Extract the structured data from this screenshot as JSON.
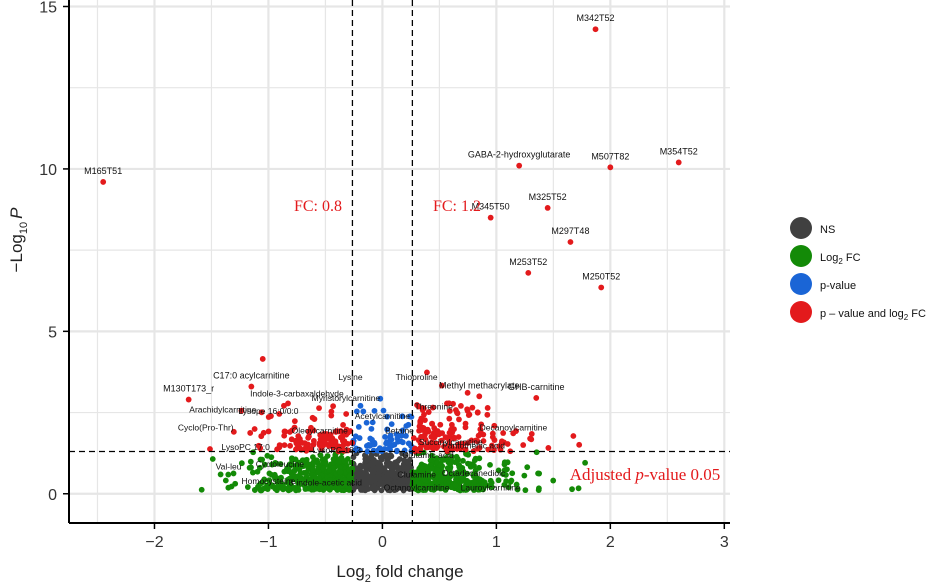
{
  "chart_data": {
    "type": "scatter",
    "xlabel_main": "Log",
    "xlabel_sub": "2",
    "xlabel_rest": " fold change",
    "ylabel_prefix": "−Log",
    "ylabel_sub": "10",
    "ylabel_p": "P",
    "xlim": [
      -2.75,
      3.05
    ],
    "ylim": [
      -0.9,
      15.2
    ],
    "x_ticks": [
      -2,
      -1,
      0,
      1,
      2,
      3
    ],
    "y_ticks": [
      0,
      5,
      10,
      15
    ],
    "fc_thresholds": [
      -0.263,
      0.263
    ],
    "p_threshold": 1.3,
    "annotations": {
      "fc_left": "FC: 0.8",
      "fc_right": "FC: 1.2",
      "adj_prefix": "Adjusted ",
      "adj_p": "p",
      "adj_suffix": "-value 0.05"
    },
    "colors": {
      "NS": "#404040",
      "FC": "#138a07",
      "P": "#1a65d6",
      "BOTH": "#e31a1c",
      "annotation": "#e31a1c"
    },
    "legend": {
      "position": "right",
      "items": [
        {
          "key": "NS",
          "label": "NS"
        },
        {
          "key": "FC",
          "label": "Log",
          "sub": "2",
          "rest": " FC"
        },
        {
          "key": "P",
          "label": "p-value"
        },
        {
          "key": "BOTH",
          "label": "p – value and log",
          "sub": "2",
          "rest": " FC"
        }
      ]
    },
    "labeled_points": [
      {
        "x": 1.87,
        "y": 14.3,
        "label": "M342T52"
      },
      {
        "x": 2.6,
        "y": 10.2,
        "label": "M354T52"
      },
      {
        "x": 2.0,
        "y": 10.05,
        "label": "M507T82"
      },
      {
        "x": 1.2,
        "y": 10.1,
        "label": "GABA-2-hydroxyglutarate"
      },
      {
        "x": -2.45,
        "y": 9.6,
        "label": "M165T51"
      },
      {
        "x": 1.45,
        "y": 8.8,
        "label": "M325T52"
      },
      {
        "x": 0.95,
        "y": 8.5,
        "label": "M345T50"
      },
      {
        "x": 1.65,
        "y": 7.75,
        "label": "M297T48"
      },
      {
        "x": 1.28,
        "y": 6.8,
        "label": "M253T52"
      },
      {
        "x": 1.92,
        "y": 6.35,
        "label": "M250T52"
      },
      {
        "x": -1.05,
        "y": 4.15,
        "label": ""
      },
      {
        "x": 1.35,
        "y": 2.95,
        "label": "GHB-carnitine"
      },
      {
        "x": 0.85,
        "y": 3.0,
        "label": "Methyl methacrylate"
      },
      {
        "x": -1.15,
        "y": 3.3,
        "label": "C17:0 acylcarnitine"
      },
      {
        "x": -1.7,
        "y": 2.9,
        "label": "M130T173_r"
      }
    ],
    "text_labels": [
      {
        "x": -0.28,
        "y": 3.5,
        "label": "Lysine"
      },
      {
        "x": 0.3,
        "y": 3.5,
        "label": "Thioproline"
      },
      {
        "x": -0.75,
        "y": 3.0,
        "label": "Indole-3-carbaxaldehyde"
      },
      {
        "x": -0.32,
        "y": 2.85,
        "label": "Myristorylcarnitine"
      },
      {
        "x": -1.4,
        "y": 2.5,
        "label": "Arachidylcarnitine"
      },
      {
        "x": -1.0,
        "y": 2.45,
        "label": "Lysope 16:0/0:0"
      },
      {
        "x": 0.0,
        "y": 2.3,
        "label": "Acetylcarnitine"
      },
      {
        "x": 0.45,
        "y": 2.6,
        "label": "Threonine"
      },
      {
        "x": -1.55,
        "y": 1.95,
        "label": "Cyclo(Pro-Thr)"
      },
      {
        "x": -0.55,
        "y": 1.85,
        "label": "Oleoylcarnitine"
      },
      {
        "x": 0.15,
        "y": 1.85,
        "label": "Betaine"
      },
      {
        "x": 0.6,
        "y": 1.5,
        "label": "Succinylcarnitine"
      },
      {
        "x": 1.15,
        "y": 1.95,
        "label": "Decanoylcarnitine"
      },
      {
        "x": -1.2,
        "y": 1.35,
        "label": "LysoPC 17:0"
      },
      {
        "x": 0.8,
        "y": 1.4,
        "label": "Pantothenic acid"
      },
      {
        "x": 0.4,
        "y": 1.1,
        "label": "Glutamic acid"
      },
      {
        "x": -1.35,
        "y": 0.75,
        "label": "Val-leu"
      },
      {
        "x": -0.9,
        "y": 0.82,
        "label": "Cycloleucine"
      },
      {
        "x": -0.4,
        "y": 1.25,
        "label": "LysoPC 18:2"
      },
      {
        "x": 0.3,
        "y": 0.5,
        "label": "Glutamine"
      },
      {
        "x": 0.8,
        "y": 0.55,
        "label": "Octadecanedioic"
      },
      {
        "x": -1.0,
        "y": 0.3,
        "label": "Homocysteine"
      },
      {
        "x": -0.5,
        "y": 0.25,
        "label": "3-indole-acetic acid"
      },
      {
        "x": 0.3,
        "y": 0.1,
        "label": "Octanoylcarnitine"
      },
      {
        "x": 0.95,
        "y": 0.1,
        "label": "Lauroylcarnitine"
      }
    ]
  }
}
